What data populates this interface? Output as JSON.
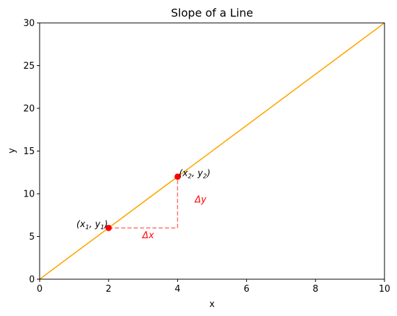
{
  "chart_data": {
    "type": "line",
    "title": "Slope of a Line",
    "xlabel": "x",
    "ylabel": "y",
    "xlim": [
      0,
      10
    ],
    "ylim": [
      0,
      30
    ],
    "xticks": [
      0,
      2,
      4,
      6,
      8,
      10
    ],
    "yticks": [
      0,
      5,
      10,
      15,
      20,
      25,
      30
    ],
    "grid": false,
    "colors": {
      "line": "#ffa500",
      "points": "#ff0000",
      "guides": "#ff6666",
      "delta_text": "#ff0000"
    },
    "line": {
      "x": [
        0,
        10
      ],
      "y": [
        0,
        30
      ]
    },
    "points": [
      {
        "x": 2,
        "y": 6,
        "label": "(x_1, y_1)",
        "label_main": "(x",
        "sub1": "1",
        "mid": ", y",
        "sub2": "1",
        "end": ")"
      },
      {
        "x": 4,
        "y": 12,
        "label": "(x_2, y_2)",
        "label_main": "(x",
        "sub1": "2",
        "mid": ", y",
        "sub2": "2",
        "end": ")"
      }
    ],
    "delta_x": {
      "label": "Δx",
      "x": 3,
      "y": 4.8
    },
    "delta_y": {
      "label": "Δy",
      "x": 4.5,
      "y": 9
    }
  }
}
